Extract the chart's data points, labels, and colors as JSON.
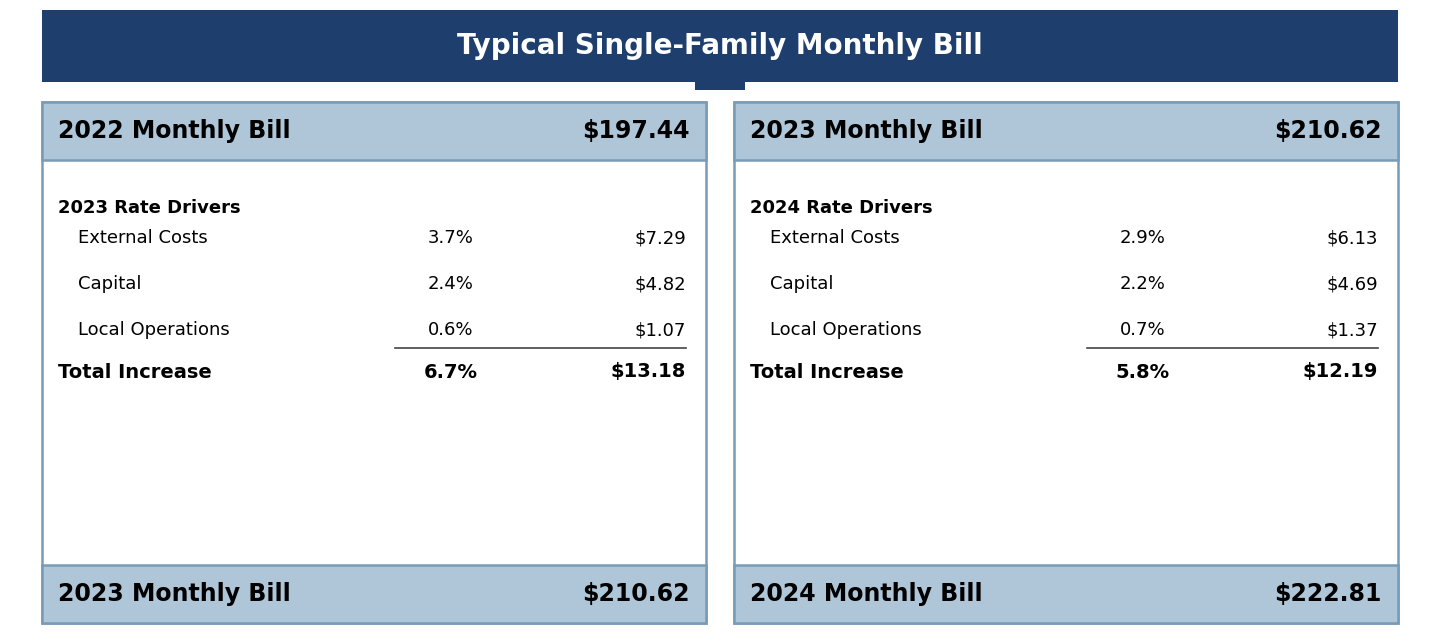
{
  "title": "Typical Single-Family Monthly Bill",
  "title_bg": "#1e3f6e",
  "title_color": "#ffffff",
  "header_bg": "#aec6d8",
  "body_bg": "#ffffff",
  "outer_bg": "#ffffff",
  "border_color": "#7a9bb5",
  "left_panel": {
    "header_label": "2022 Monthly Bill",
    "header_value": "$197.44",
    "rate_drivers_label": "2023 Rate Drivers",
    "rows": [
      {
        "label": "External Costs",
        "pct": "3.7%",
        "val": "$7.29"
      },
      {
        "label": "Capital",
        "pct": "2.4%",
        "val": "$4.82"
      },
      {
        "label": "Local Operations",
        "pct": "0.6%",
        "val": "$1.07"
      }
    ],
    "total_label": "Total Increase",
    "total_pct": "6.7%",
    "total_val": "$13.18",
    "footer_label": "2023 Monthly Bill",
    "footer_value": "$210.62"
  },
  "right_panel": {
    "header_label": "2023 Monthly Bill",
    "header_value": "$210.62",
    "rate_drivers_label": "2024 Rate Drivers",
    "rows": [
      {
        "label": "External Costs",
        "pct": "2.9%",
        "val": "$6.13"
      },
      {
        "label": "Capital",
        "pct": "2.2%",
        "val": "$4.69"
      },
      {
        "label": "Local Operations",
        "pct": "0.7%",
        "val": "$1.37"
      }
    ],
    "total_label": "Total Increase",
    "total_pct": "5.8%",
    "total_val": "$12.19",
    "footer_label": "2024 Monthly Bill",
    "footer_value": "$222.81"
  }
}
